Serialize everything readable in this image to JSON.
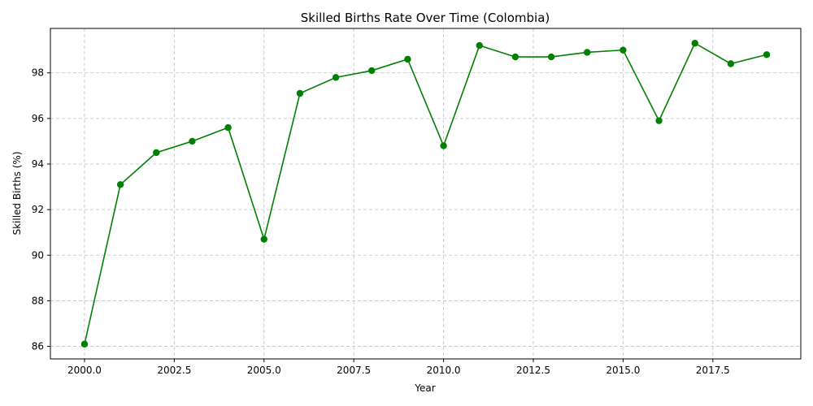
{
  "chart_data": {
    "type": "line",
    "title": "Skilled Births Rate Over Time (Colombia)",
    "xlabel": "Year",
    "ylabel": "Skilled Births (%)",
    "x": [
      2000,
      2001,
      2002,
      2003,
      2004,
      2005,
      2006,
      2007,
      2008,
      2009,
      2010,
      2011,
      2012,
      2013,
      2014,
      2015,
      2016,
      2017,
      2018,
      2019
    ],
    "series": [
      {
        "values": [
          86.1,
          93.1,
          94.5,
          95.0,
          95.6,
          90.7,
          97.1,
          97.8,
          98.1,
          98.6,
          94.8,
          99.2,
          98.7,
          98.7,
          98.9,
          99.0,
          95.9,
          99.3,
          98.4,
          98.8
        ],
        "color": "#008000",
        "marker": "circle"
      }
    ],
    "xlim": [
      1999.05,
      2019.95
    ],
    "ylim": [
      85.45,
      99.95
    ],
    "xticks": [
      "2000.0",
      "2002.5",
      "2005.0",
      "2007.5",
      "2010.0",
      "2012.5",
      "2015.0",
      "2017.5"
    ],
    "yticks": [
      "86",
      "88",
      "90",
      "92",
      "94",
      "96",
      "98"
    ],
    "grid": true
  }
}
